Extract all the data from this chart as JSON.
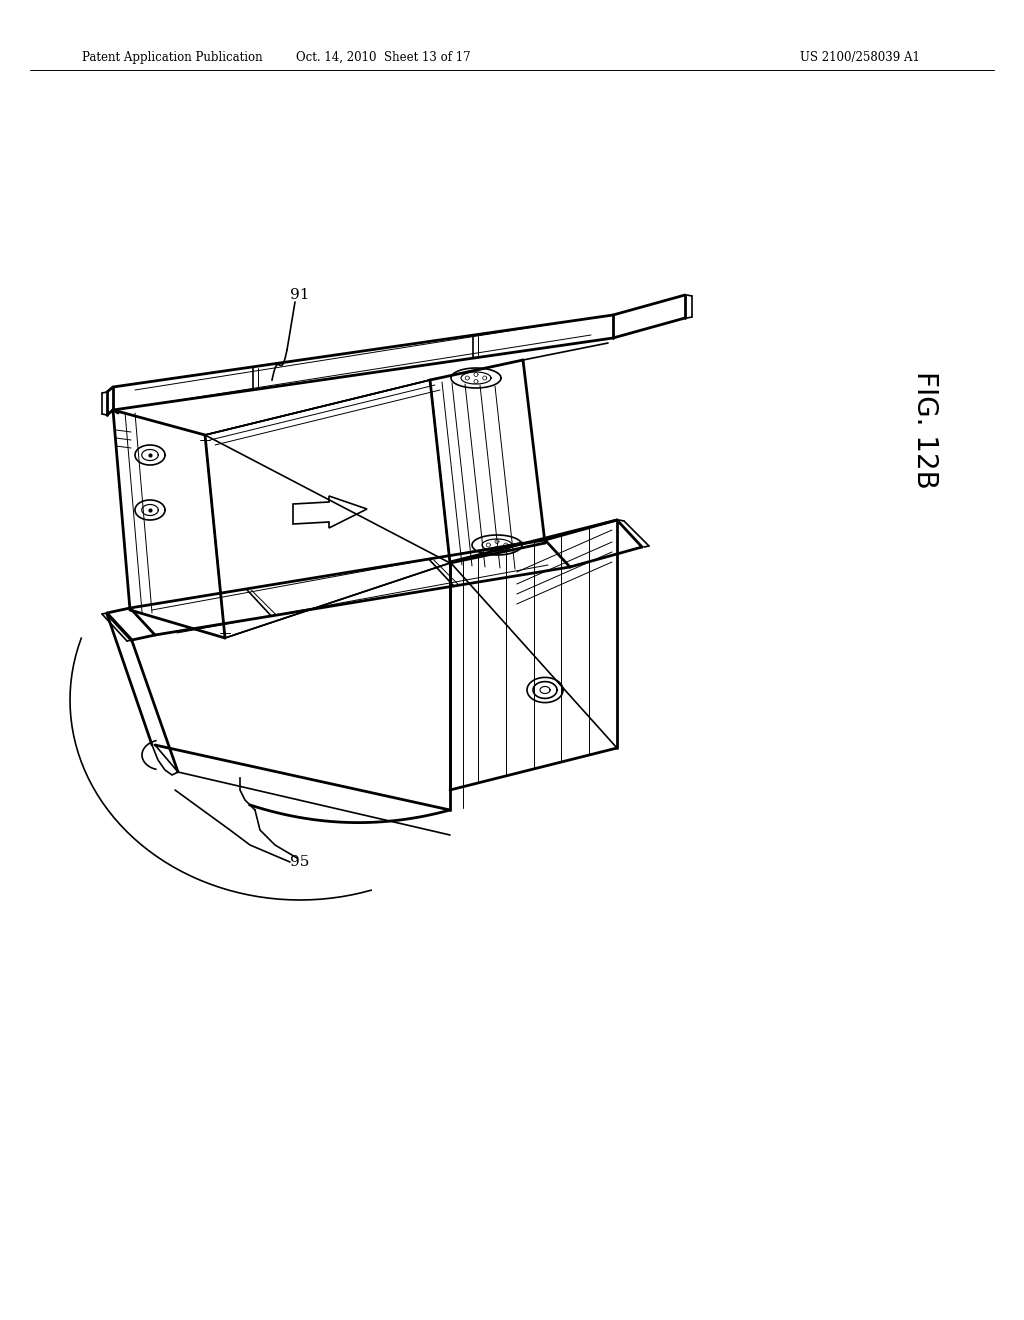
{
  "background_color": "#ffffff",
  "header_left": "Patent Application Publication",
  "header_mid": "Oct. 14, 2010  Sheet 13 of 17",
  "header_right": "US 2100/258039 A1",
  "figure_label": "FIG. 12B",
  "label_91": "91",
  "label_95": "95",
  "line_color": "#000000",
  "lw_thick": 2.0,
  "lw_med": 1.2,
  "lw_thin": 0.7
}
